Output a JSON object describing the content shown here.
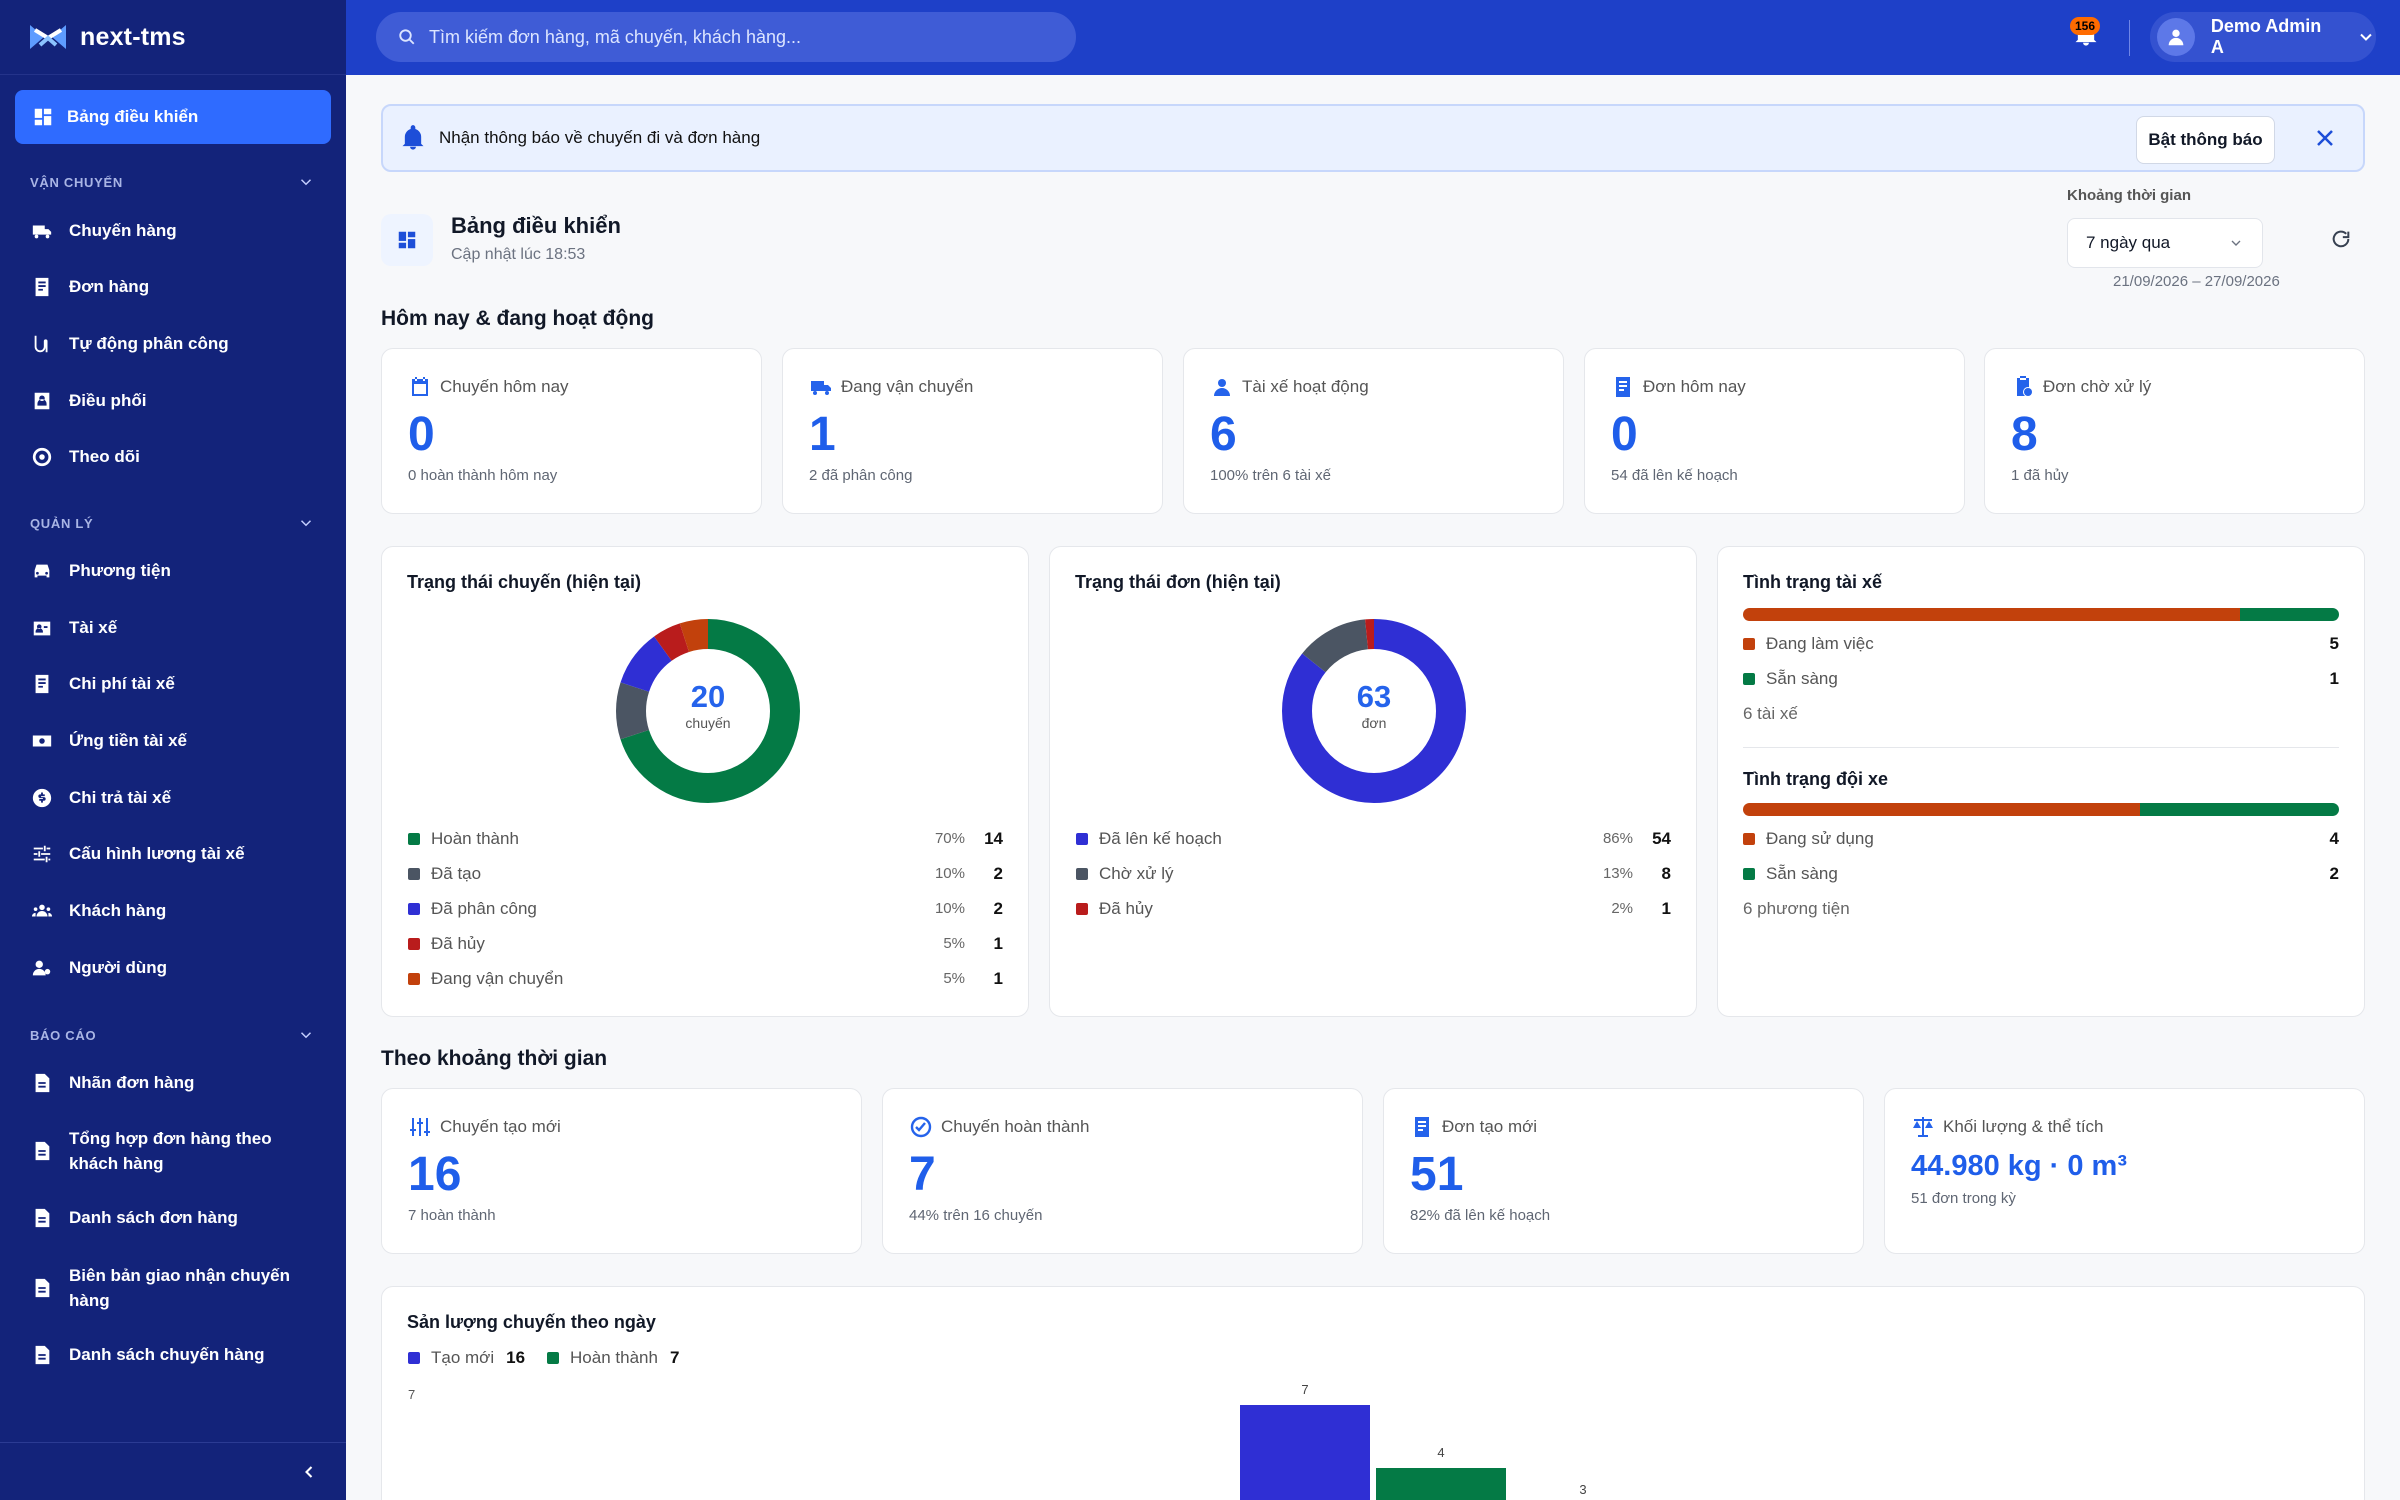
{
  "app": {
    "name": "next-tms"
  },
  "sidebar": {
    "active": "Bảng điều khiển",
    "sections": [
      {
        "label": "VẬN CHUYỂN",
        "items": [
          "Chuyến hàng",
          "Đơn hàng",
          "Tự động phân công",
          "Điều phối",
          "Theo dõi"
        ]
      },
      {
        "label": "QUẢN LÝ",
        "items": [
          "Phương tiện",
          "Tài xế",
          "Chi phí tài xế",
          "Ứng tiền tài xế",
          "Chi trả tài xế",
          "Cấu hình lương tài xế",
          "Khách hàng",
          "Người dùng"
        ]
      },
      {
        "label": "BÁO CÁO",
        "items": [
          "Nhãn đơn hàng",
          "Tổng hợp đơn hàng theo khách hàng",
          "Danh sách đơn hàng",
          "Biên bản giao nhận chuyến hàng",
          "Danh sách chuyến hàng"
        ]
      }
    ]
  },
  "topbar": {
    "search_placeholder": "Tìm kiếm đơn hàng, mã chuyến, khách hàng...",
    "notification_count": "156",
    "user_name": "Demo Admin A"
  },
  "notice": {
    "text": "Nhận thông báo về chuyến đi và đơn hàng",
    "button": "Bật thông báo"
  },
  "page": {
    "title": "Bảng điều khiển",
    "updated": "Cập nhật lúc 18:53"
  },
  "range": {
    "label": "Khoảng thời gian",
    "selected": "7 ngày qua",
    "dates": "21/09/2026 – 27/09/2026"
  },
  "today": {
    "title": "Hôm nay & đang hoạt động",
    "cards": [
      {
        "title": "Chuyến hôm nay",
        "value": "0",
        "sub": "0 hoàn thành hôm nay",
        "icon": "calendar-icon"
      },
      {
        "title": "Đang vận chuyển",
        "value": "1",
        "sub": "2 đã phân công",
        "icon": "truck-icon"
      },
      {
        "title": "Tài xế hoạt động",
        "value": "6",
        "sub": "100% trên 6 tài xế",
        "icon": "person-icon"
      },
      {
        "title": "Đơn hôm nay",
        "value": "0",
        "sub": "54 đã lên kế hoạch",
        "icon": "receipt-icon"
      },
      {
        "title": "Đơn chờ xử lý",
        "value": "8",
        "sub": "1 đã hủy",
        "icon": "clipboard-clock-icon"
      }
    ]
  },
  "trip_status": {
    "title": "Trạng thái chuyến (hiện tại)",
    "total": "20",
    "unit": "chuyến",
    "items": [
      {
        "name": "Hoàn thành",
        "pct": "70%",
        "count": "14",
        "value": 14,
        "color": "#047a45"
      },
      {
        "name": "Đã tạo",
        "pct": "10%",
        "count": "2",
        "value": 2,
        "color": "#4b5563"
      },
      {
        "name": "Đã phân công",
        "pct": "10%",
        "count": "2",
        "value": 2,
        "color": "#2f2fd4"
      },
      {
        "name": "Đã hủy",
        "pct": "5%",
        "count": "1",
        "value": 1,
        "color": "#b91c1c"
      },
      {
        "name": "Đang vận chuyển",
        "pct": "5%",
        "count": "1",
        "value": 1,
        "color": "#c2410c"
      }
    ]
  },
  "order_status": {
    "title": "Trạng thái đơn (hiện tại)",
    "total": "63",
    "unit": "đơn",
    "items": [
      {
        "name": "Đã lên kế hoạch",
        "pct": "86%",
        "count": "54",
        "value": 54,
        "color": "#2f2fd4"
      },
      {
        "name": "Chờ xử lý",
        "pct": "13%",
        "count": "8",
        "value": 8,
        "color": "#4b5563"
      },
      {
        "name": "Đã hủy",
        "pct": "2%",
        "count": "1",
        "value": 1,
        "color": "#b91c1c"
      }
    ]
  },
  "driver_status": {
    "title": "Tình trạng tài xế",
    "items": [
      {
        "name": "Đang làm việc",
        "count": "5",
        "value": 5,
        "color": "#c2410c"
      },
      {
        "name": "Sẵn sàng",
        "count": "1",
        "value": 1,
        "color": "#047a45"
      }
    ],
    "footer": "6 tài xế"
  },
  "fleet_status": {
    "title": "Tình trạng đội xe",
    "items": [
      {
        "name": "Đang sử dụng",
        "count": "4",
        "value": 4,
        "color": "#c2410c"
      },
      {
        "name": "Sẵn sàng",
        "count": "2",
        "value": 2,
        "color": "#047a45"
      }
    ],
    "footer": "6 phương tiện"
  },
  "period": {
    "title": "Theo khoảng thời gian",
    "cards": [
      {
        "title": "Chuyến tạo mới",
        "value": "16",
        "sub": "7 hoàn thành",
        "icon": "sliders-icon"
      },
      {
        "title": "Chuyến hoàn thành",
        "value": "7",
        "sub": "44% trên 16 chuyến",
        "icon": "check-circle-icon"
      },
      {
        "title": "Đơn tạo mới",
        "value": "51",
        "sub": "82% đã lên kế hoạch",
        "icon": "receipt-icon"
      },
      {
        "title": "Khối lượng & thể tích",
        "value": "44.980 kg · 0 m³",
        "sub": "51 đơn trong kỳ",
        "icon": "scale-icon"
      }
    ]
  },
  "chart_data": {
    "type": "bar",
    "title": "Sản lượng chuyến theo ngày",
    "series": [
      {
        "name": "Tạo mới",
        "total": "16",
        "values": [
          7
        ],
        "color": "#2f2fd4"
      },
      {
        "name": "Hoàn thành",
        "total": "7",
        "values": [
          4
        ],
        "color": "#047a45"
      }
    ],
    "extra_labels": [
      "3"
    ],
    "y_tick": "7"
  }
}
